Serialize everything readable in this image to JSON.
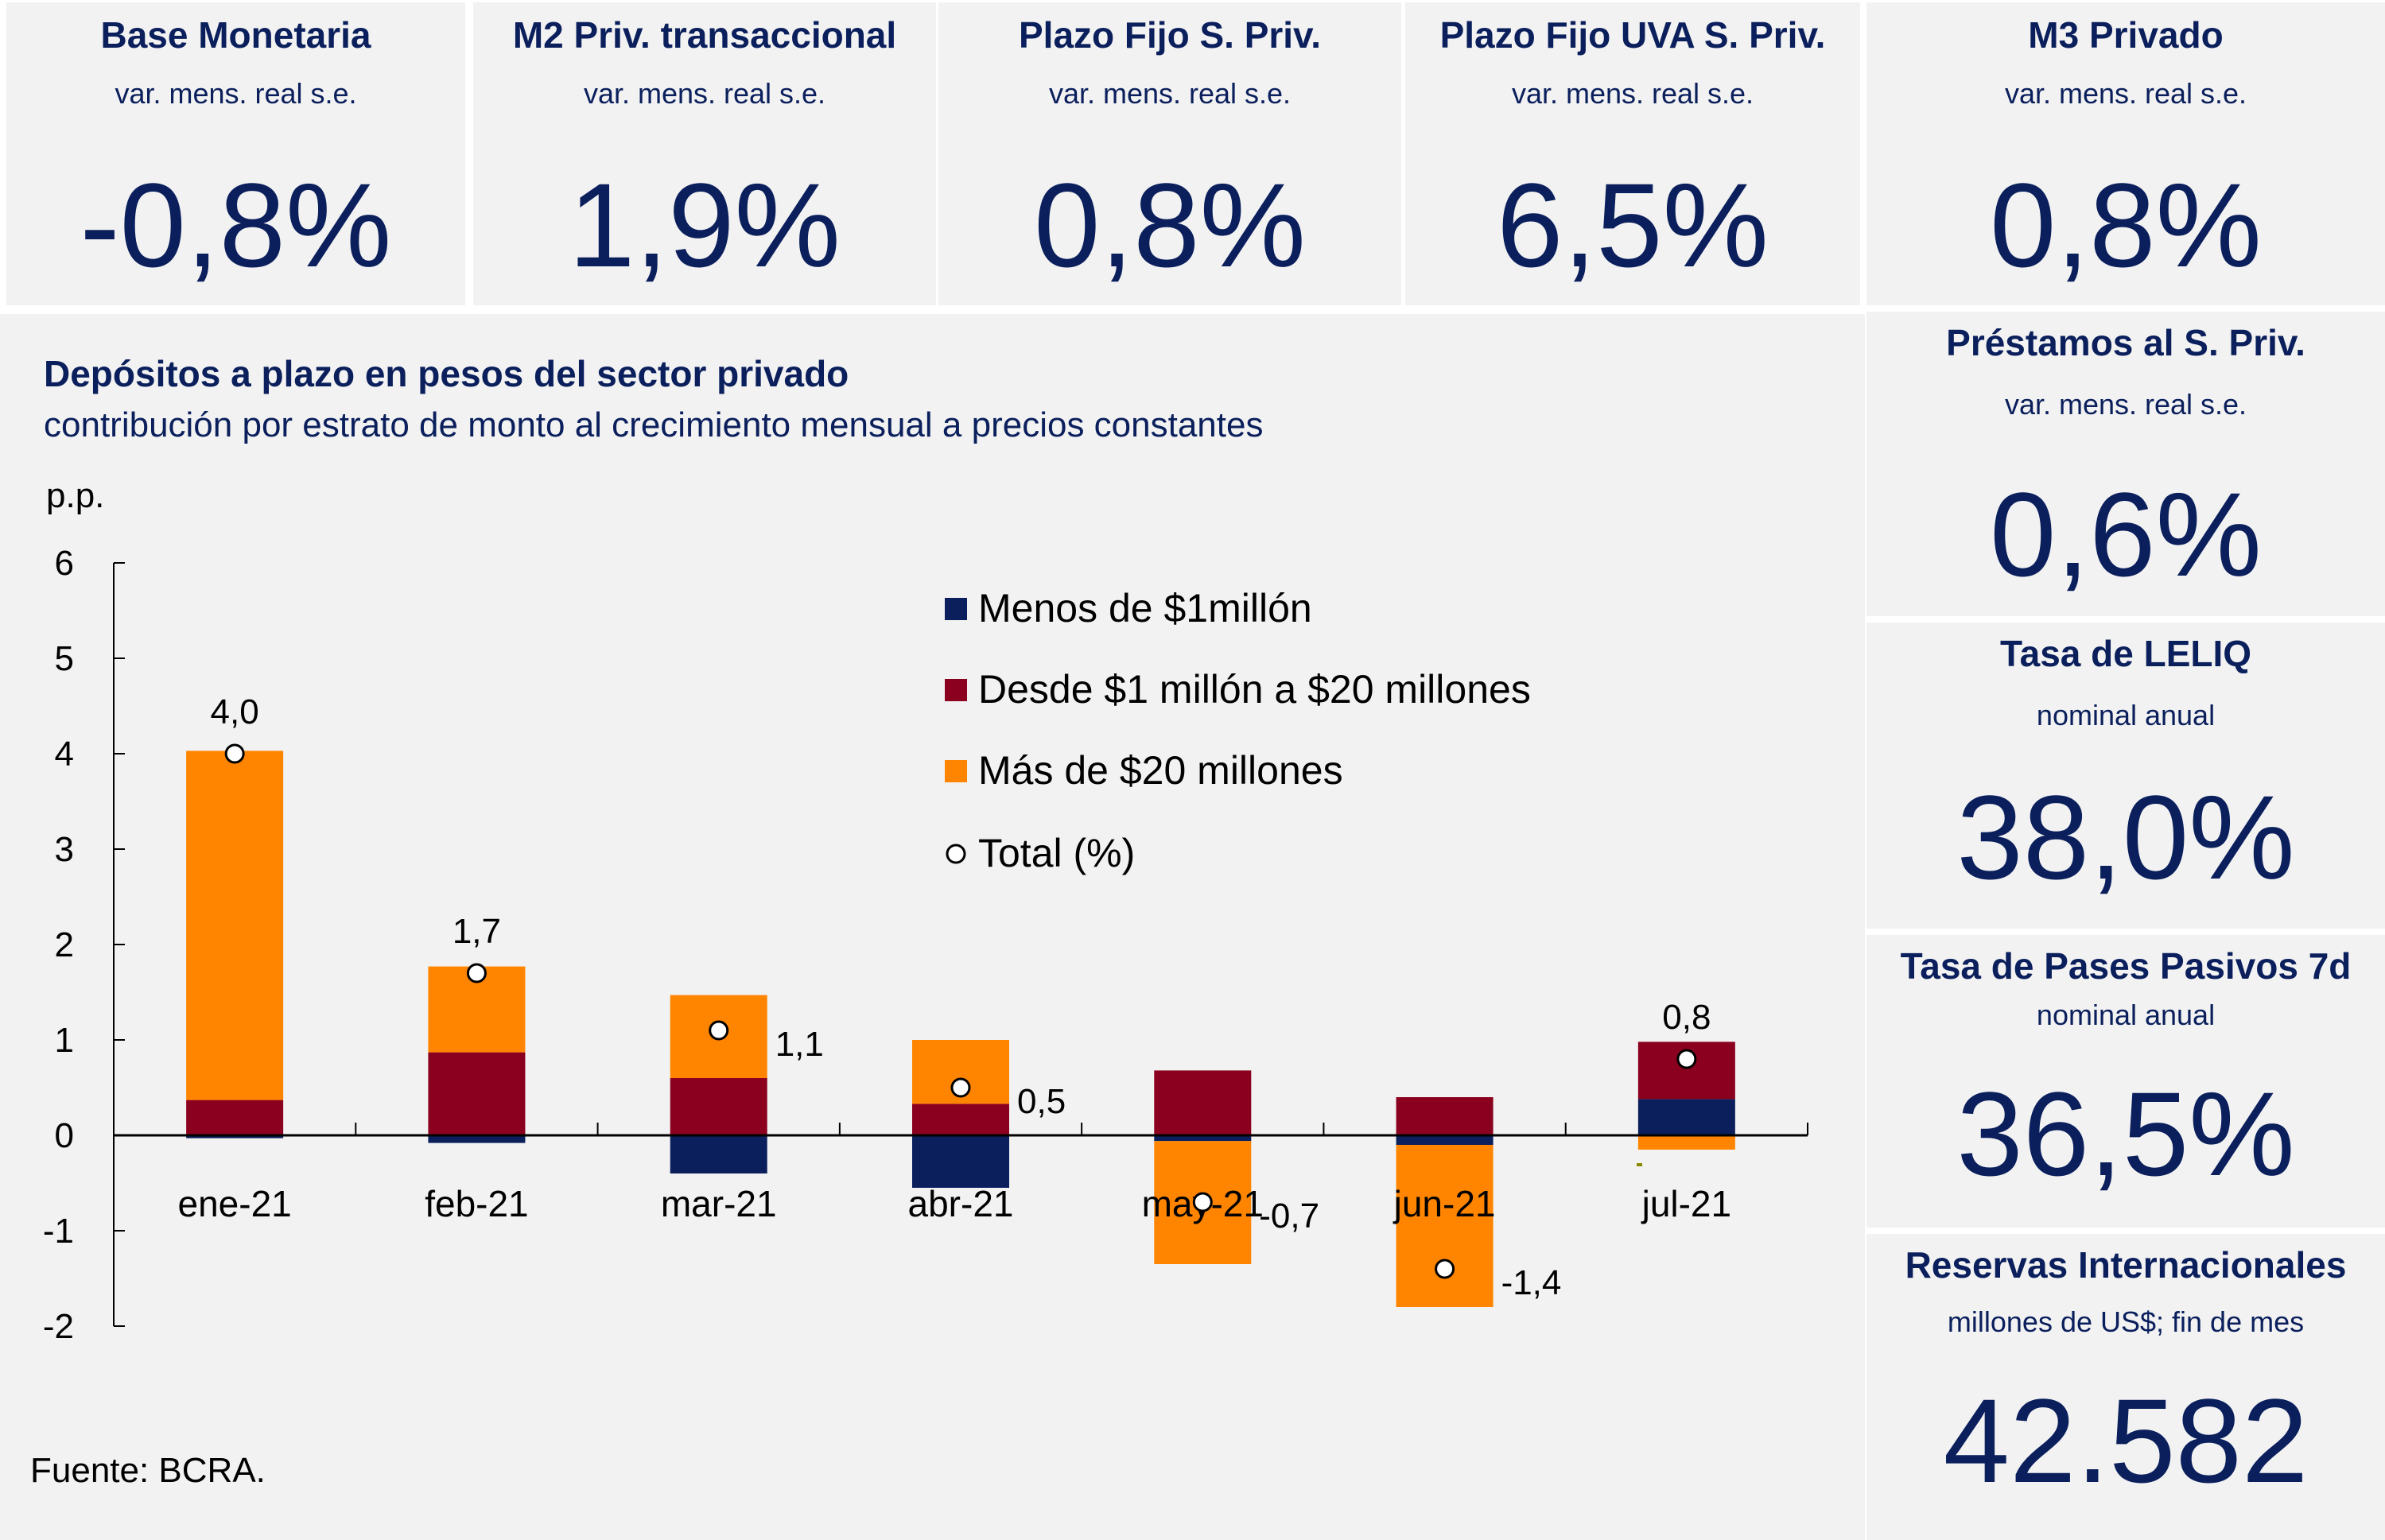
{
  "indicators": [
    {
      "title": "Base Monetaria",
      "subtitle": "var. mens. real s.e.",
      "value": "-0,8%"
    },
    {
      "title": "M2 Priv. transaccional",
      "subtitle": "var. mens. real s.e.",
      "value": "1,9%"
    },
    {
      "title": "Plazo Fijo S. Priv.",
      "subtitle": "var. mens. real s.e.",
      "value": "0,8%"
    },
    {
      "title": "Plazo Fijo UVA S. Priv.",
      "subtitle": "var. mens. real s.e.",
      "value": "6,5%"
    },
    {
      "title": "M3 Privado",
      "subtitle": "var. mens. real s.e.",
      "value": "0,8%"
    },
    {
      "title": "Préstamos al S. Priv.",
      "subtitle": "var. mens. real s.e.",
      "value": "0,6%"
    },
    {
      "title": "Tasa de LELIQ",
      "subtitle": "nominal anual",
      "value": "38,0%"
    },
    {
      "title": "Tasa de Pases Pasivos 7d",
      "subtitle": "nominal anual",
      "value": "36,5%"
    },
    {
      "title": "Reservas Internacionales",
      "subtitle": "millones de US$; fin de mes",
      "value": "42.582"
    }
  ],
  "source": "Fuente: BCRA.",
  "colors": {
    "text_navy": "#0a1f5c",
    "menos": "#0a1f5c",
    "desde": "#8b001f",
    "mas": "#ff8500",
    "panel_bg": "#f2f2f2"
  },
  "chart_data": {
    "type": "bar",
    "stacked": true,
    "title": "Depósitos a plazo en pesos del sector privado",
    "subtitle": "contribución por estrato de monto al crecimiento mensual a precios constantes",
    "ylabel": "p.p.",
    "xlabel": "",
    "ylim": [
      -2,
      6
    ],
    "yticks": [
      -2,
      -1,
      0,
      1,
      2,
      3,
      4,
      5,
      6
    ],
    "grid": false,
    "legend_position": "top-center",
    "categories": [
      "ene-21",
      "feb-21",
      "mar-21",
      "abr-21",
      "may-21",
      "jun-21",
      "jul-21"
    ],
    "series": [
      {
        "name": "Menos de $1millón",
        "key": "menos",
        "values": [
          -0.03,
          -0.08,
          -0.4,
          -0.55,
          -0.06,
          -0.1,
          0.38
        ]
      },
      {
        "name": "Desde $1 millón a $20 millones",
        "key": "desde",
        "values": [
          0.37,
          0.87,
          0.6,
          0.33,
          0.68,
          0.4,
          0.6
        ]
      },
      {
        "name": "Más de $20 millones",
        "key": "mas",
        "values": [
          3.66,
          0.9,
          0.87,
          0.67,
          -1.29,
          -1.7,
          -0.15
        ]
      }
    ],
    "total": {
      "name": "Total (%)",
      "values": [
        4.0,
        1.7,
        1.1,
        0.5,
        -0.7,
        -1.4,
        0.8
      ],
      "labels": [
        "4,0",
        "1,7",
        "1,1",
        "0,5",
        "-0,7",
        "-1,4",
        "0,8"
      ],
      "label_positions": [
        "above",
        "above",
        "right",
        "right",
        "right",
        "right",
        "above"
      ]
    }
  }
}
